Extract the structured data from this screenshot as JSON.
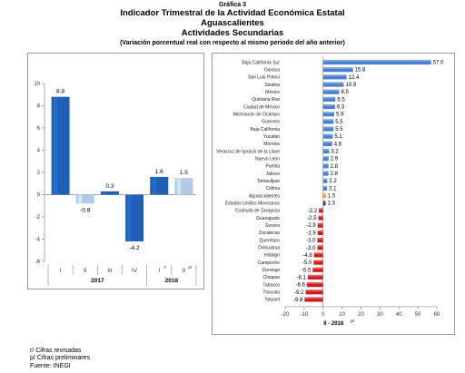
{
  "header": {
    "chart_number": "Gráfica 3",
    "title": "Indicador Trimestral de la Actividad Económica Estatal",
    "state": "Aguascalientes",
    "subtitle": "Actividades Secundarias",
    "note": "(Variación porcentual real con respecto al mismo periodo del año anterior)"
  },
  "chart_data": [
    {
      "type": "bar",
      "orientation": "vertical",
      "categories": [
        "I",
        "II",
        "III",
        "IV",
        "I",
        "II"
      ],
      "category_suffix": [
        "",
        "",
        "",
        "",
        "r/",
        "p/"
      ],
      "years": [
        {
          "label": "2017",
          "from": 0,
          "to": 3
        },
        {
          "label": "2018",
          "from": 4,
          "to": 5
        }
      ],
      "values": [
        8.8,
        -0.8,
        0.3,
        -4.2,
        1.6,
        1.5
      ],
      "value_labels": [
        "8.8",
        "-0.8",
        "0.3",
        "-4.2",
        "1.6",
        "1.5"
      ],
      "bar_colors": [
        "#1f5fb5",
        "#b4c9e6",
        "#1f5fb5",
        "#1f5fb5",
        "#1f5fb5",
        "#b4c9e6"
      ],
      "ylim": [
        -6,
        10
      ],
      "yticks": [
        -6,
        -4,
        -2,
        0,
        2,
        4,
        6,
        8,
        10
      ],
      "grid": false
    },
    {
      "type": "bar",
      "orientation": "horizontal",
      "categories": [
        "Baja California Sur",
        "Oaxaca",
        "San Luis Potosí",
        "Sinaloa",
        "México",
        "Quintana Roo",
        "Ciudad de México",
        "Michoacán de Ocampo",
        "Guerrero",
        "Baja California",
        "Yucatán",
        "Morelos",
        "Veracruz de Ignacio de la Llave",
        "Nuevo León",
        "Puebla",
        "Jalisco",
        "Tamaulipas",
        "Colima",
        "Aguascalientes",
        "Estados Unidos Mexicanos",
        "Coahuila de Zaragoza",
        "Guanajuato",
        "Sonora",
        "Zacatecas",
        "Querétaro",
        "Chihuahua",
        "Hidalgo",
        "Campeche",
        "Durango",
        "Chiapas",
        "Tabasco",
        "Tlaxcala",
        "Nayarit"
      ],
      "values": [
        57.0,
        15.8,
        12.4,
        10.9,
        8.5,
        6.5,
        6.3,
        5.9,
        5.5,
        5.5,
        5.1,
        4.8,
        3.2,
        2.9,
        2.8,
        2.8,
        2.2,
        2.1,
        1.5,
        1.3,
        -2.2,
        -2.5,
        -2.9,
        -2.9,
        -3.0,
        -3.0,
        -4.8,
        -5.0,
        -5.5,
        -8.1,
        -8.6,
        -9.2,
        -9.8
      ],
      "value_labels": [
        "57.0",
        "15.8",
        "12.4",
        "10.9",
        "8.5",
        "6.5",
        "6.3",
        "5.9",
        "5.5",
        "5.5",
        "5.1",
        "4.8",
        "3.2",
        "2.9",
        "2.8",
        "2.8",
        "2.2",
        "2.1",
        "1.5",
        "1.3",
        "-2.2",
        "-2.5",
        "-2.9",
        "-2.9",
        "-3.0",
        "-3.0",
        "-4.8",
        "-5.0",
        "-5.5",
        "-8.1",
        "-8.6",
        "-9.2",
        "-9.8"
      ],
      "xlabel": "II - 2018",
      "xlabel_suffix": "p/",
      "xlim": [
        -20,
        60
      ],
      "xticks": [
        -20,
        -10,
        0,
        10,
        20,
        30,
        40,
        50,
        60
      ],
      "colors": {
        "positive": "#4a7fd0",
        "negative": "#d01c1c",
        "state": "#f4a236",
        "national": "#16325e"
      },
      "grid": false
    }
  ],
  "footnotes": [
    "r/ Cifras revisadas",
    "p/ Cifras preliminares",
    "Fuente: INEGI"
  ]
}
